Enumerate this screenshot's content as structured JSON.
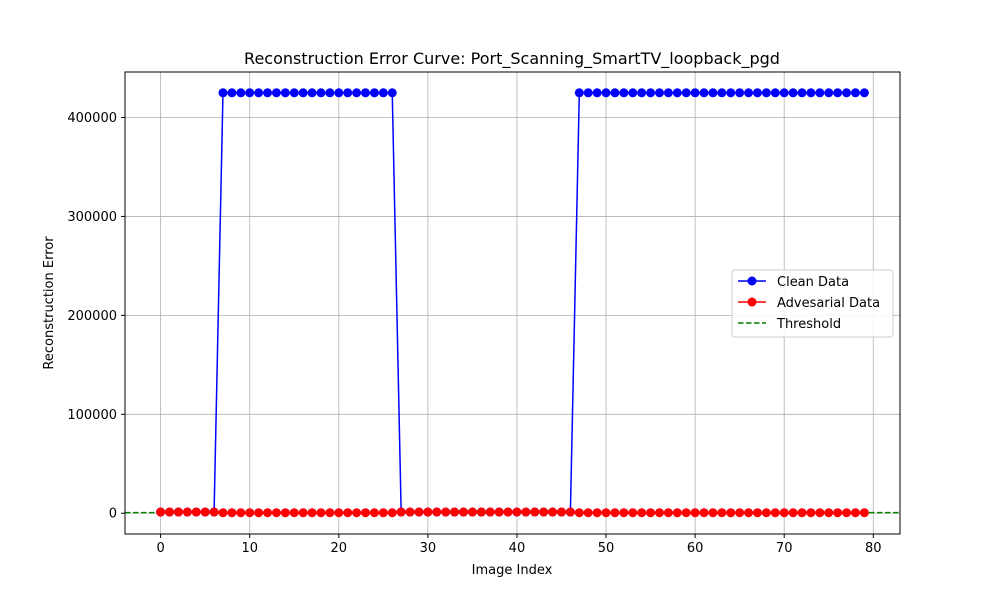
{
  "chart_data": {
    "type": "line",
    "title": "Reconstruction Error Curve: Port_Scanning_SmartTV_loopback_pgd",
    "xlabel": "Image Index",
    "ylabel": "Reconstruction Error",
    "xlim": [
      -4,
      83
    ],
    "ylim": [
      -21000,
      446000
    ],
    "x_ticks": [
      0,
      10,
      20,
      30,
      40,
      50,
      60,
      70,
      80
    ],
    "y_ticks": [
      0,
      100000,
      200000,
      300000,
      400000
    ],
    "grid": true,
    "legend_position": "center-right",
    "x": [
      0,
      1,
      2,
      3,
      4,
      5,
      6,
      7,
      8,
      9,
      10,
      11,
      12,
      13,
      14,
      15,
      16,
      17,
      18,
      19,
      20,
      21,
      22,
      23,
      24,
      25,
      26,
      27,
      28,
      29,
      30,
      31,
      32,
      33,
      34,
      35,
      36,
      37,
      38,
      39,
      40,
      41,
      42,
      43,
      44,
      45,
      46,
      47,
      48,
      49,
      50,
      51,
      52,
      53,
      54,
      55,
      56,
      57,
      58,
      59,
      60,
      61,
      62,
      63,
      64,
      65,
      66,
      67,
      68,
      69,
      70,
      71,
      72,
      73,
      74,
      75,
      76,
      77,
      78,
      79
    ],
    "series": [
      {
        "name": "Clean Data",
        "color": "#0000ff",
        "marker": "circle",
        "values": [
          1200,
          1200,
          1200,
          1200,
          1200,
          1200,
          1200,
          425000,
          425000,
          425000,
          425000,
          425000,
          425000,
          425000,
          425000,
          425000,
          425000,
          425000,
          425000,
          425000,
          425000,
          425000,
          425000,
          425000,
          425000,
          425000,
          425000,
          1200,
          1200,
          1200,
          1200,
          1200,
          1200,
          1200,
          1200,
          1200,
          1200,
          1200,
          1200,
          1200,
          1200,
          1200,
          1200,
          1200,
          1200,
          1200,
          1200,
          425000,
          425000,
          425000,
          425000,
          425000,
          425000,
          425000,
          425000,
          425000,
          425000,
          425000,
          425000,
          425000,
          425000,
          425000,
          425000,
          425000,
          425000,
          425000,
          425000,
          425000,
          425000,
          425000,
          425000,
          425000,
          425000,
          425000,
          425000,
          425000,
          425000,
          425000,
          425000,
          425000
        ]
      },
      {
        "name": "Advesarial Data",
        "color": "#ff0000",
        "marker": "circle",
        "values": [
          1200,
          1200,
          1200,
          1200,
          1200,
          1200,
          1200,
          500,
          500,
          500,
          500,
          500,
          500,
          500,
          500,
          500,
          500,
          500,
          500,
          500,
          500,
          500,
          500,
          500,
          500,
          500,
          500,
          1200,
          1200,
          1200,
          1200,
          1200,
          1200,
          1200,
          1200,
          1200,
          1200,
          1200,
          1200,
          1200,
          1200,
          1200,
          1200,
          1200,
          1200,
          1200,
          1200,
          500,
          500,
          500,
          500,
          500,
          500,
          500,
          500,
          500,
          500,
          500,
          500,
          500,
          500,
          500,
          500,
          500,
          500,
          500,
          500,
          500,
          500,
          500,
          500,
          500,
          500,
          500,
          500,
          500,
          500,
          500,
          500,
          500
        ]
      }
    ],
    "threshold": {
      "name": "Threshold",
      "value": 600,
      "color": "#008000",
      "style": "dashed"
    }
  }
}
